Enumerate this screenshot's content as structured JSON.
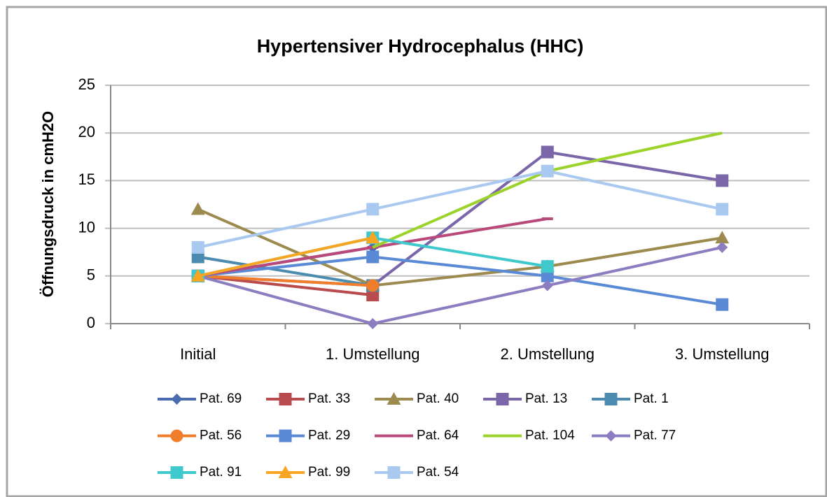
{
  "chart_data": {
    "type": "line",
    "title": "Hypertensiver Hydrocephalus (HHC)",
    "y_label": "Öffnungsdruck in cmH2O",
    "categories": [
      "Initial",
      "1. Umstellung",
      "2. Umstellung",
      "3. Umstellung"
    ],
    "ylim": [
      0,
      25
    ],
    "yticks": [
      0,
      5,
      10,
      15,
      20,
      25
    ],
    "grid": true,
    "legend": "bottom",
    "series": [
      {
        "name": "Pat. 69",
        "color": "#4a6bb0",
        "marker": "diamond",
        "values": [
          5,
          8,
          null,
          null
        ]
      },
      {
        "name": "Pat. 33",
        "color": "#b94a4d",
        "marker": "square",
        "values": [
          5,
          3,
          null,
          null
        ]
      },
      {
        "name": "Pat. 40",
        "color": "#9c8a4f",
        "marker": "triangle",
        "values": [
          12,
          4,
          6,
          9
        ]
      },
      {
        "name": "Pat. 13",
        "color": "#7a66a8",
        "marker": "square",
        "values": [
          5,
          4,
          18,
          15
        ]
      },
      {
        "name": "Pat. 1",
        "color": "#4b8bb0",
        "marker": "square",
        "values": [
          7,
          4,
          null,
          null
        ]
      },
      {
        "name": "Pat. 56",
        "color": "#f07d2a",
        "marker": "circle",
        "values": [
          5,
          4,
          null,
          null
        ]
      },
      {
        "name": "Pat. 29",
        "color": "#5a8ad6",
        "marker": "square",
        "values": [
          5,
          7,
          5,
          2
        ]
      },
      {
        "name": "Pat. 64",
        "color": "#b8497a",
        "marker": "dash",
        "values": [
          5,
          8,
          11,
          null
        ]
      },
      {
        "name": "Pat. 104",
        "color": "#9bd32a",
        "marker": "none",
        "values": [
          null,
          8,
          16,
          20
        ]
      },
      {
        "name": "Pat. 77",
        "color": "#8c7cc0",
        "marker": "diamond",
        "values": [
          5,
          0,
          4,
          8
        ]
      },
      {
        "name": "Pat. 91",
        "color": "#3fc9cc",
        "marker": "square",
        "values": [
          5,
          9,
          6,
          null
        ]
      },
      {
        "name": "Pat. 99",
        "color": "#f6a623",
        "marker": "triangle",
        "values": [
          5,
          9,
          null,
          null
        ]
      },
      {
        "name": "Pat. 54",
        "color": "#a9c9f0",
        "marker": "square",
        "values": [
          8,
          12,
          16,
          12
        ]
      }
    ]
  }
}
